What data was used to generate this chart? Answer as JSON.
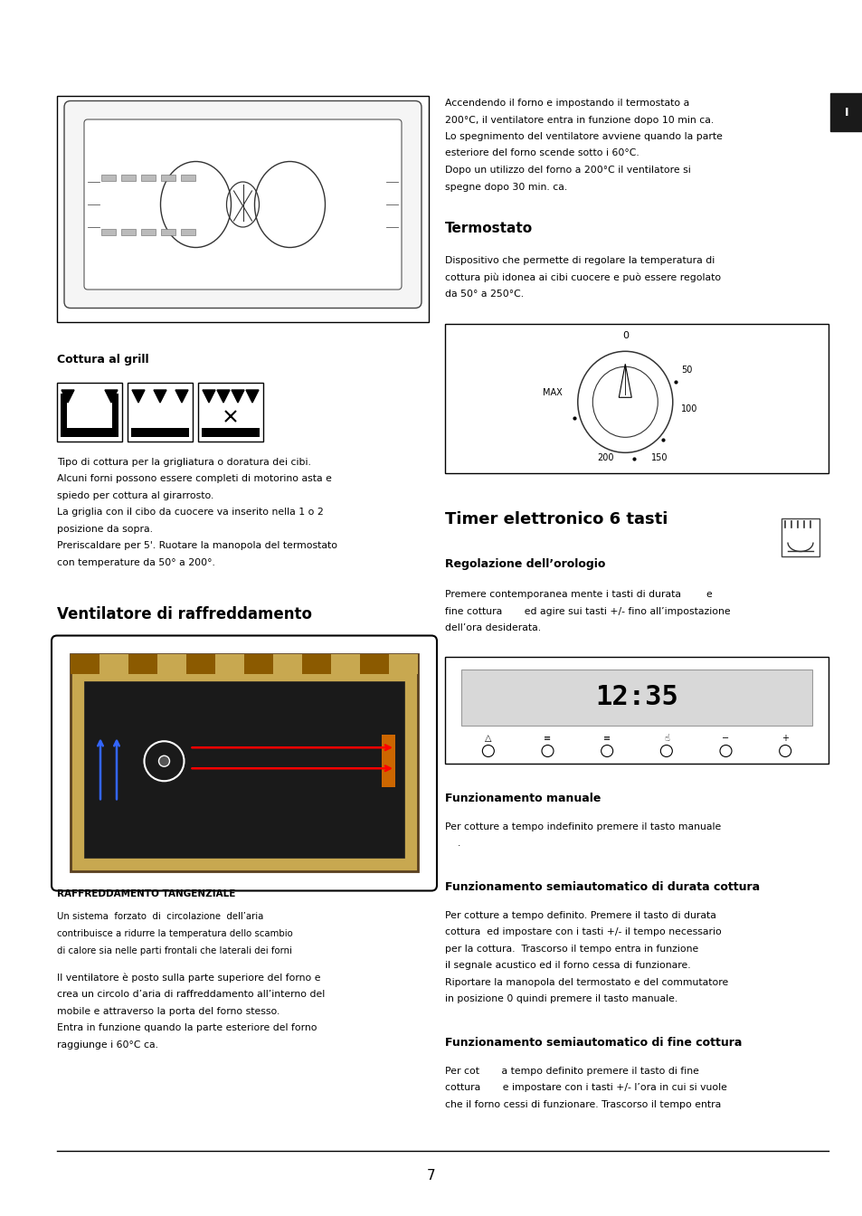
{
  "page_bg": "#ffffff",
  "page_width": 9.54,
  "page_height": 13.44,
  "dpi": 100,
  "tab_color": "#1a1a1a",
  "tab_text": "I",
  "sections": {
    "intro_text_lines": [
      "Accendendo il forno e impostando il termostato a",
      "200°C, il ventilatore entra in funzione dopo 10 min ca.",
      "Lo spegnimento del ventilatore avviene quando la parte",
      "esteriore del forno scende sotto i 60°C.",
      "Dopo un utilizzo del forno a 200°C il ventilatore si",
      "spegne dopo 30 min. ca."
    ],
    "termostato_title": "Termostato",
    "termostato_text_lines": [
      "Dispositivo che permette di regolare la temperatura di",
      "cottura più idonea ai cibi cuocere e può essere regolato",
      "da 50° a 250°C."
    ],
    "cottura_grill_title": "Cottura al grill",
    "cottura_grill_text_lines": [
      "Tipo di cottura per la grigliatura o doratura dei cibi.",
      "Alcuni forni possono essere completi di motorino asta e",
      "spiedo per cottura al girarrosto.",
      "La griglia con il cibo da cuocere va inserito nella 1 o 2",
      "posizione da sopra.",
      "Preriscaldare per 5'. Ruotare la manopola del termostato",
      "con temperature da 50° a 200°."
    ],
    "ventilatore_title": "Ventilatore di raffreddamento",
    "raffreddamento_label": "RAFFREDDAMENTO TANGENZIALE",
    "raffreddamento_text1_lines": [
      "Un sistema  forzato  di  circolazione  dell’aria",
      "contribuisce a ridurre la temperatura dello scambio",
      "di calore sia nelle parti frontali che laterali dei forni"
    ],
    "raffreddamento_text2_lines": [
      "Il ventilatore è posto sulla parte superiore del forno e",
      "crea un circolo d’aria di raffreddamento all’interno del",
      "mobile e attraverso la porta del forno stesso.",
      "Entra in funzione quando la parte esteriore del forno",
      "raggiunge i 60°C ca."
    ],
    "timer_title": "Timer elettronico 6 tasti",
    "regolazione_title": "Regolazione dell’orologio",
    "regolazione_text_lines": [
      "Premere contemporanea mente i tasti di durata        e",
      "fine cottura       ed agire sui tasti +/- fino all’impostazione",
      "dell’ora desiderata."
    ],
    "funz_manuale_title": "Funzionamento manuale",
    "funz_manuale_text_lines": [
      "Per cotture a tempo indefinito premere il tasto manuale",
      "    ."
    ],
    "funz_semi_dur_title": "Funzionamento semiautomatico di durata cottura",
    "funz_semi_dur_text_lines": [
      "Per cotture a tempo definito. Premere il tasto di durata",
      "cottura  ed impostare con i tasti +/- il tempo necessario",
      "per la cottura.  Trascorso il tempo entra in funzione",
      "il segnale acustico ed il forno cessa di funzionare.",
      "Riportare la manopola del termostato e del commutatore",
      "in posizione 0 quindi premere il tasto manuale."
    ],
    "funz_semi_fine_title": "Funzionamento semiautomatico di fine cottura",
    "funz_semi_fine_text_lines": [
      "Per cot       a tempo definito premere il tasto di fine",
      "cottura       e impostare con i tasti +/- l’ora in cui si vuole",
      "che il forno cessi di funzionare. Trascorso il tempo entra"
    ]
  },
  "page_number": "7"
}
